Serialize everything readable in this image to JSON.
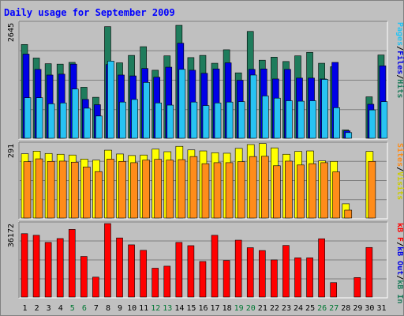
{
  "colors": {
    "background": "#c0c0c0",
    "frame": "#808080",
    "title": "#0000ff",
    "grid": "#808080",
    "weekend_label": "#007733",
    "weekday_label": "#000000",
    "hits": "#1f7c5c",
    "files": "#0000e6",
    "pages": "#27c3f3",
    "visits": "#ffff00",
    "sites": "#ff8c1a",
    "kb_in": "#1f7c5c",
    "kb_out": "#0000e6",
    "kb_f": "#ff0000"
  },
  "chart_data": {
    "type": "bar",
    "title": "Daily usage for September 2009",
    "categories": [
      "1",
      "2",
      "3",
      "4",
      "5",
      "6",
      "7",
      "8",
      "9",
      "10",
      "11",
      "12",
      "13",
      "14",
      "15",
      "16",
      "17",
      "18",
      "19",
      "20",
      "21",
      "22",
      "23",
      "24",
      "25",
      "26",
      "27",
      "28",
      "29",
      "30",
      "31"
    ],
    "weekend_days": [
      "5",
      "6",
      "12",
      "13",
      "19",
      "20",
      "26",
      "27"
    ],
    "panels": [
      {
        "id": "requests",
        "max_label": "2645",
        "ymax": 2645,
        "legend": [
          {
            "text": "Pages",
            "color": "#27c3f3"
          },
          {
            "text": "/",
            "color": "#000000"
          },
          {
            "text": "Files",
            "color": "#0000e6"
          },
          {
            "text": "/",
            "color": "#000000"
          },
          {
            "text": "Hits",
            "color": "#1f7c5c"
          }
        ],
        "series": [
          {
            "name": "Hits",
            "color": "#1f7c5c",
            "values": [
              2150,
              1840,
              1710,
              1700,
              1740,
              1170,
              940,
              2560,
              1730,
              1900,
              2100,
              1560,
              1890,
              2590,
              1850,
              1900,
              1720,
              2030,
              1500,
              2450,
              1790,
              1860,
              1760,
              1890,
              1970,
              1720,
              1640,
              190,
              0,
              950,
              1910
            ]
          },
          {
            "name": "Files",
            "color": "#0000e6",
            "values": [
              1930,
              1580,
              1450,
              1470,
              1700,
              890,
              770,
              1690,
              1450,
              1430,
              1600,
              1400,
              1630,
              2180,
              1560,
              1490,
              1590,
              1730,
              1330,
              1580,
              1590,
              1360,
              1580,
              1380,
              1380,
              1360,
              1740,
              170,
              0,
              780,
              1660
            ]
          },
          {
            "name": "Pages",
            "color": "#27c3f3",
            "values": [
              930,
              930,
              790,
              810,
              1130,
              690,
              510,
              1770,
              830,
              890,
              1280,
              810,
              760,
              1580,
              830,
              750,
              810,
              830,
              840,
              1450,
              970,
              920,
              860,
              850,
              860,
              1350,
              700,
              130,
              0,
              650,
              840
            ]
          }
        ]
      },
      {
        "id": "visits",
        "max_label": "291",
        "ymax": 291,
        "legend": [
          {
            "text": "Sites",
            "color": "#ff8c1a"
          },
          {
            "text": "/",
            "color": "#000000"
          },
          {
            "text": "Visits",
            "color": "#cccc00"
          }
        ],
        "series": [
          {
            "name": "Visits",
            "color": "#ffff00",
            "values": [
              252,
              262,
              253,
              250,
              247,
              231,
              227,
              266,
              251,
              245,
              247,
              270,
              260,
              281,
              267,
              263,
              256,
              254,
              273,
              288,
              292,
              275,
              250,
              261,
              263,
              224,
              222,
              56,
              0,
              261,
              0
            ]
          },
          {
            "name": "Sites",
            "color": "#ff8c1a",
            "values": [
              221,
              232,
              222,
              223,
              219,
              200,
              182,
              231,
              222,
              217,
              227,
              230,
              227,
              229,
              241,
              213,
              217,
              217,
              221,
              241,
              242,
              205,
              223,
              208,
              213,
              217,
              181,
              31,
              0,
              222,
              0
            ]
          }
        ]
      },
      {
        "id": "kbytes",
        "max_label": "36172",
        "ymax": 36172,
        "legend": [
          {
            "text": "kB F",
            "color": "#ff0000"
          },
          {
            "text": "/",
            "color": "#000000"
          },
          {
            "text": "kB Out",
            "color": "#0000e6"
          },
          {
            "text": "/",
            "color": "#000000"
          },
          {
            "text": "kB In",
            "color": "#1f7c5c"
          }
        ],
        "series": [
          {
            "name": "kB F",
            "color": "#ff0000",
            "values": [
              31200,
              30400,
              26900,
              28800,
              33300,
              20000,
              9800,
              36172,
              29100,
              25700,
              23000,
              14200,
              15200,
              26900,
              25300,
              17500,
              30400,
              18000,
              28000,
              24300,
              22900,
              18300,
              25400,
              19300,
              19300,
              28700,
              7100,
              0,
              9600,
              24400,
              0
            ]
          }
        ]
      }
    ]
  }
}
